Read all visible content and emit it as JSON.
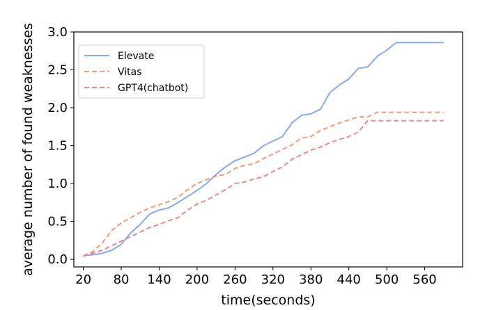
{
  "chart_data": {
    "type": "line",
    "title": "",
    "xlabel": "time(seconds)",
    "ylabel": "average number of found weaknesses",
    "xlim": [
      5,
      620
    ],
    "ylim": [
      -0.1,
      3.0
    ],
    "xticks": [
      20,
      80,
      140,
      200,
      260,
      320,
      380,
      440,
      500,
      560
    ],
    "yticks": [
      0.0,
      0.5,
      1.0,
      1.5,
      2.0,
      2.5,
      3.0
    ],
    "ytick_labels": [
      "0.0",
      "0.5",
      "1.0",
      "1.5",
      "2.0",
      "2.5",
      "3.0"
    ],
    "grid": false,
    "legend_position": "top-left",
    "x": [
      20,
      35,
      50,
      65,
      80,
      95,
      110,
      125,
      140,
      155,
      170,
      185,
      200,
      215,
      230,
      245,
      260,
      275,
      290,
      305,
      320,
      335,
      350,
      365,
      380,
      395,
      410,
      425,
      440,
      455,
      470,
      485,
      500,
      515,
      530,
      545,
      560,
      575,
      590
    ],
    "series": [
      {
        "name": "Elevate",
        "color": "#86a8f0",
        "dash": "solid",
        "values": [
          0.05,
          0.06,
          0.08,
          0.12,
          0.2,
          0.35,
          0.46,
          0.6,
          0.65,
          0.68,
          0.75,
          0.83,
          0.91,
          1.0,
          1.12,
          1.22,
          1.3,
          1.35,
          1.4,
          1.5,
          1.56,
          1.62,
          1.8,
          1.9,
          1.92,
          1.98,
          2.2,
          2.3,
          2.38,
          2.52,
          2.54,
          2.68,
          2.76,
          2.86,
          2.86,
          2.86,
          2.86,
          2.86,
          2.86
        ]
      },
      {
        "name": "Vitas",
        "color": "#f09a78",
        "dash": "dashed",
        "values": [
          0.05,
          0.1,
          0.22,
          0.38,
          0.48,
          0.55,
          0.62,
          0.68,
          0.72,
          0.76,
          0.82,
          0.92,
          1.0,
          1.05,
          1.1,
          1.12,
          1.2,
          1.24,
          1.26,
          1.33,
          1.39,
          1.45,
          1.51,
          1.6,
          1.62,
          1.7,
          1.75,
          1.8,
          1.84,
          1.88,
          1.88,
          1.94,
          1.94,
          1.94,
          1.94,
          1.94,
          1.94,
          1.94,
          1.94
        ]
      },
      {
        "name": "GPT4(chatbot)",
        "color": "#e8878c",
        "dash": "dashed",
        "values": [
          0.04,
          0.08,
          0.12,
          0.18,
          0.24,
          0.3,
          0.36,
          0.42,
          0.46,
          0.51,
          0.55,
          0.65,
          0.73,
          0.78,
          0.85,
          0.92,
          1.0,
          1.02,
          1.06,
          1.09,
          1.16,
          1.22,
          1.32,
          1.38,
          1.44,
          1.48,
          1.54,
          1.58,
          1.62,
          1.68,
          1.83,
          1.83,
          1.83,
          1.83,
          1.83,
          1.83,
          1.83,
          1.83,
          1.83
        ]
      }
    ]
  }
}
